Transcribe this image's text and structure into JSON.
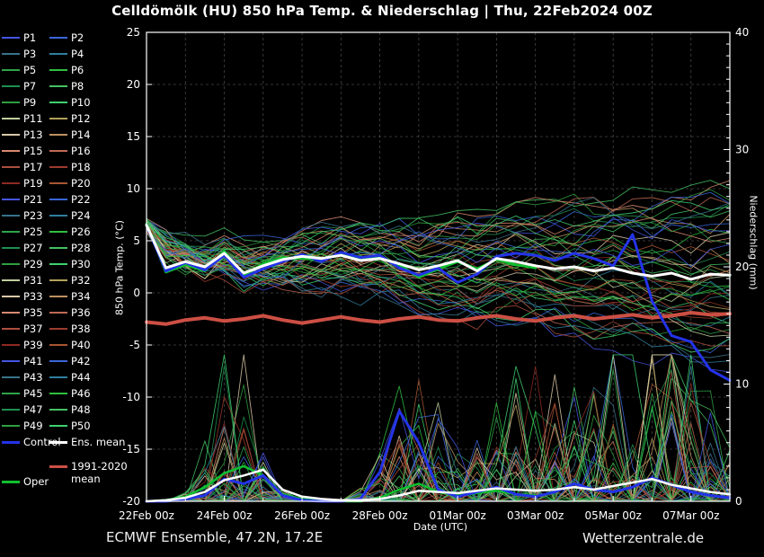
{
  "header": {
    "title": "Celldömölk  (HU)  850 hPa Temp. & Niederschlag | Thu, 22Feb2024 00Z"
  },
  "footer": {
    "left": "ECMWF Ensemble, 47.2N, 17.2E",
    "right": "Wetterzentrale.de"
  },
  "legend": {
    "members": [
      "P1",
      "P2",
      "P3",
      "P4",
      "P5",
      "P6",
      "P7",
      "P8",
      "P9",
      "P10",
      "P11",
      "P12",
      "P13",
      "P14",
      "P15",
      "P16",
      "P17",
      "P18",
      "P19",
      "P20",
      "P21",
      "P22",
      "P23",
      "P24",
      "P25",
      "P26",
      "P27",
      "P28",
      "P29",
      "P30",
      "P31",
      "P32",
      "P33",
      "P34",
      "P35",
      "P36",
      "P37",
      "P38",
      "P39",
      "P40",
      "P41",
      "P42",
      "P43",
      "P44",
      "P45",
      "P46",
      "P47",
      "P48",
      "P49",
      "P50"
    ],
    "member_palette": [
      "#4455e0",
      "#3a66d8",
      "#38738b",
      "#2f7f9f",
      "#2fa44a",
      "#2fbf3f",
      "#1f8f4f",
      "#45c063",
      "#2f9f3f",
      "#3fd06f",
      "#c0cf9f",
      "#b3a15a",
      "#d9c9a8",
      "#bd9060",
      "#d98a70",
      "#c06a55",
      "#ad4f3d",
      "#9d3c2d",
      "#8e2a22",
      "#a85632"
    ],
    "specials": [
      {
        "label": "Control",
        "color": "#2433e8"
      },
      {
        "label": "Ens. mean",
        "color": "#ffffff"
      },
      {
        "label": "Oper",
        "color": "#0fbf2f"
      },
      {
        "label": "1991-2020 mean",
        "color": "#cc4f44"
      }
    ]
  },
  "chart_data": {
    "type": "line",
    "title": "Celldömölk (HU) 850 hPa Temp. & Niederschlag | Thu, 22Feb2024 00Z",
    "x": {
      "label": "Date (UTC)",
      "start": "22Feb 00z",
      "days": 15,
      "step_hours": 12,
      "tick_labels": [
        "22Feb 00z",
        "24Feb 00z",
        "26Feb 00z",
        "28Feb 00z",
        "01Mar 00z",
        "03Mar 00z",
        "05Mar 00z",
        "07Mar 00z"
      ],
      "grid": "daily-dashed"
    },
    "y_left": {
      "label": "850 hPa Temp. (°C)",
      "min": -20,
      "max": 25,
      "tick_step": 5,
      "tick_labels": [
        25,
        20,
        15,
        10,
        5,
        0,
        -5,
        -10,
        -15,
        -20
      ],
      "grid": "dashed"
    },
    "y_right": {
      "label": "Niederschlag (mm)",
      "min": 0,
      "max": 40,
      "tick_step": 10,
      "minor_step": 1,
      "tick_labels": [
        40,
        30,
        20,
        10,
        0
      ]
    },
    "series": [
      {
        "name": "1991-2020 mean",
        "axis": "temp",
        "color": "#cc4f44",
        "width": 4,
        "values": [
          -2.8,
          -3.0,
          -2.6,
          -2.4,
          -2.7,
          -2.5,
          -2.2,
          -2.6,
          -2.9,
          -2.6,
          -2.3,
          -2.6,
          -2.8,
          -2.5,
          -2.3,
          -2.6,
          -2.7,
          -2.4,
          -2.2,
          -2.5,
          -2.7,
          -2.4,
          -2.2,
          -2.5,
          -2.3,
          -2.1,
          -2.4,
          -2.2,
          -1.9,
          -2.1,
          -2.0
        ]
      },
      {
        "name": "Oper precip",
        "axis": "precip",
        "color": "#0fbf2f",
        "width": 2.5,
        "values": [
          0,
          0.1,
          0.4,
          1.2,
          2.4,
          3.0,
          2.2,
          0.6,
          0.2,
          0.1,
          0,
          0,
          0.3,
          1.0,
          1.5,
          0.8,
          0.5,
          0.7,
          0.9,
          0.6,
          0.5
        ]
      },
      {
        "name": "Control precip",
        "axis": "precip",
        "color": "#2433e8",
        "width": 3,
        "values": [
          0,
          0,
          0.2,
          0.5,
          1.9,
          1.5,
          2.2,
          0.5,
          0.1,
          0,
          0,
          0.2,
          2.5,
          7.7,
          5.0,
          1.0,
          0.4,
          0.8,
          1.2,
          0.6,
          0.4,
          0.8,
          1.5,
          1.0,
          0.8,
          1.2,
          2.0,
          1.4,
          0.8,
          0.5,
          0.3
        ]
      },
      {
        "name": "Ens. mean precip",
        "axis": "precip",
        "color": "#ffffff",
        "width": 2.5,
        "values": [
          0,
          0.1,
          0.3,
          0.8,
          1.8,
          2.2,
          2.7,
          1.0,
          0.4,
          0.2,
          0.1,
          0.1,
          0.2,
          0.5,
          0.9,
          0.8,
          0.7,
          0.9,
          1.1,
          1.0,
          0.9,
          1.0,
          1.2,
          1.0,
          1.3,
          1.6,
          1.9,
          1.4,
          1.1,
          0.8,
          0.6
        ]
      },
      {
        "name": "Oper",
        "axis": "temp",
        "color": "#0fbf2f",
        "width": 3,
        "values": [
          6.6,
          2.0,
          2.7,
          2.1,
          4.0,
          1.7,
          2.8,
          3.4,
          3.3,
          3.2,
          3.8,
          3.3,
          3.4,
          2.7,
          1.5,
          2.3,
          3.0,
          2.3,
          3.2,
          2.7,
          2.4
        ]
      },
      {
        "name": "Control",
        "axis": "temp",
        "color": "#2433e8",
        "width": 3,
        "values": [
          6.5,
          2.1,
          2.9,
          2.2,
          3.6,
          1.5,
          2.3,
          3.0,
          3.7,
          3.0,
          3.9,
          3.4,
          3.6,
          2.4,
          1.7,
          2.4,
          1.0,
          1.8,
          3.5,
          3.8,
          3.6,
          3.1,
          3.8,
          3.3,
          2.6,
          5.6,
          -0.8,
          -4.1,
          -4.7,
          -7.4,
          -8.4
        ]
      },
      {
        "name": "Ens. mean",
        "axis": "temp",
        "color": "#ffffff",
        "width": 3,
        "values": [
          6.5,
          2.4,
          3.0,
          2.5,
          3.8,
          1.9,
          2.6,
          3.2,
          3.5,
          3.3,
          3.6,
          3.1,
          3.3,
          2.8,
          2.2,
          2.6,
          3.1,
          2.1,
          3.3,
          3.0,
          2.6,
          2.3,
          2.5,
          2.1,
          2.4,
          1.9,
          1.6,
          1.9,
          1.3,
          1.8,
          1.7
        ]
      }
    ],
    "ensemble": {
      "count": 50,
      "seed": 42,
      "start_temp": 6.5,
      "temp_spread_per_day": 0.55,
      "temp_spread_max": 8,
      "temp_range": [
        -11.5,
        10.8
      ],
      "precip_max": 12.5,
      "precip_events": [
        {
          "center_day": 2.3,
          "sigma": 0.75,
          "amp": 6.5
        },
        {
          "center_day": 7.0,
          "sigma": 0.9,
          "amp": 6.0
        },
        {
          "center_day": 9.7,
          "sigma": 1.0,
          "amp": 5.0
        },
        {
          "center_day": 11.8,
          "sigma": 1.0,
          "amp": 5.5
        },
        {
          "center_day": 13.6,
          "sigma": 1.1,
          "amp": 6.5
        },
        {
          "center_day": 12.0,
          "sigma": 3.5,
          "amp": 2.0
        }
      ]
    }
  }
}
